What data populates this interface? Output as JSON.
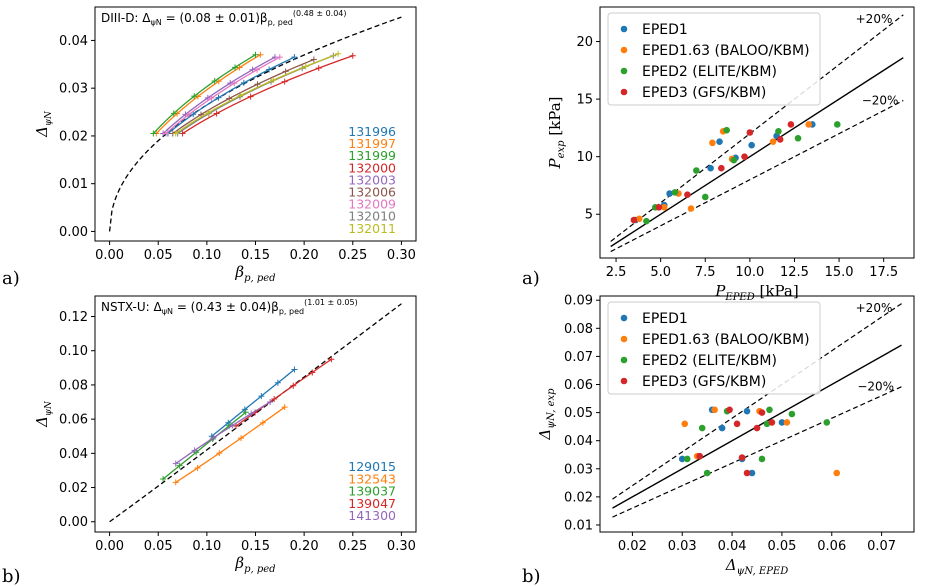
{
  "panel_labels": {
    "top_left": "a)",
    "top_right": "a)",
    "bottom_left": "b)",
    "bottom_right": "b)"
  },
  "chart_data": [
    {
      "type": "line",
      "id": "diiid",
      "annotation": "DIII-D: Δψₙ = (0.08 ± 0.01) β_p,ped^(0.48 ± 0.04)",
      "annotation_parts": {
        "prefix": "DIII-D: Δ",
        "sub": "ψN",
        "eq": " = (0.08 ± 0.01)β",
        "bsub": "p, ped",
        "sup": "(0.48 ± 0.04)"
      },
      "xlabel": "β_p,ped",
      "ylabel": "Δψₙ",
      "xlim": [
        -0.015,
        0.315
      ],
      "ylim": [
        -0.002,
        0.047
      ],
      "xticks": [
        0.0,
        0.05,
        0.1,
        0.15,
        0.2,
        0.25,
        0.3
      ],
      "xtick_labels": [
        "0.00",
        "0.05",
        "0.10",
        "0.15",
        "0.20",
        "0.25",
        "0.30"
      ],
      "yticks": [
        0.0,
        0.01,
        0.02,
        0.03,
        0.04
      ],
      "ytick_labels": [
        "0.00",
        "0.01",
        "0.02",
        "0.03",
        "0.04"
      ],
      "fit": {
        "coef": 0.08,
        "exp": 0.48,
        "xmax": 0.3
      },
      "series": [
        {
          "name": "131996",
          "color": "#1f77b4",
          "x": [
            0.06,
            0.19
          ],
          "y": [
            0.0205,
            0.0365
          ]
        },
        {
          "name": "131997",
          "color": "#ff7f0e",
          "x": [
            0.048,
            0.155
          ],
          "y": [
            0.0205,
            0.037
          ]
        },
        {
          "name": "131999",
          "color": "#2ca02c",
          "x": [
            0.045,
            0.15
          ],
          "y": [
            0.0205,
            0.037
          ]
        },
        {
          "name": "132000",
          "color": "#d62728",
          "x": [
            0.075,
            0.25
          ],
          "y": [
            0.0205,
            0.0368
          ]
        },
        {
          "name": "132003",
          "color": "#9467bd",
          "x": [
            0.055,
            0.17
          ],
          "y": [
            0.0205,
            0.0365
          ]
        },
        {
          "name": "132006",
          "color": "#8c564b",
          "x": [
            0.065,
            0.21
          ],
          "y": [
            0.0205,
            0.036
          ]
        },
        {
          "name": "132009",
          "color": "#e377c2",
          "x": [
            0.058,
            0.175
          ],
          "y": [
            0.0205,
            0.0365
          ]
        },
        {
          "name": "132010",
          "color": "#7f7f7f",
          "x": [
            0.07,
            0.23
          ],
          "y": [
            0.0205,
            0.0368
          ]
        },
        {
          "name": "132011",
          "color": "#bcbd22",
          "x": [
            0.068,
            0.235
          ],
          "y": [
            0.0205,
            0.0372
          ]
        }
      ]
    },
    {
      "type": "line",
      "id": "nstxu",
      "annotation_parts": {
        "prefix": "NSTX-U: Δ",
        "sub": "ψN",
        "eq": " = (0.43 ± 0.04)β",
        "bsub": "p, ped",
        "sup": "(1.01 ± 0.05)"
      },
      "xlabel": "β_p,ped",
      "ylabel": "Δψₙ",
      "xlim": [
        -0.015,
        0.315
      ],
      "ylim": [
        -0.006,
        0.132
      ],
      "xticks": [
        0.0,
        0.05,
        0.1,
        0.15,
        0.2,
        0.25,
        0.3
      ],
      "xtick_labels": [
        "0.00",
        "0.05",
        "0.10",
        "0.15",
        "0.20",
        "0.25",
        "0.30"
      ],
      "yticks": [
        0.0,
        0.02,
        0.04,
        0.06,
        0.08,
        0.1,
        0.12
      ],
      "ytick_labels": [
        "0.00",
        "0.02",
        "0.04",
        "0.06",
        "0.08",
        "0.10",
        "0.12"
      ],
      "fit": {
        "coef": 0.43,
        "exp": 1.01,
        "xmax": 0.3
      },
      "series": [
        {
          "name": "129015",
          "color": "#1f77b4",
          "x": [
            0.105,
            0.19
          ],
          "y": [
            0.05,
            0.089
          ]
        },
        {
          "name": "132543",
          "color": "#ff7f0e",
          "x": [
            0.068,
            0.18
          ],
          "y": [
            0.023,
            0.067
          ]
        },
        {
          "name": "139037",
          "color": "#2ca02c",
          "x": [
            0.055,
            0.14
          ],
          "y": [
            0.025,
            0.064
          ]
        },
        {
          "name": "139047",
          "color": "#d62728",
          "x": [
            0.13,
            0.228
          ],
          "y": [
            0.056,
            0.095
          ]
        },
        {
          "name": "141300",
          "color": "#9467bd",
          "x": [
            0.068,
            0.165
          ],
          "y": [
            0.034,
            0.07
          ]
        }
      ]
    },
    {
      "type": "scatter",
      "id": "pressure",
      "xlabel": "P_EPED [kPa]",
      "ylabel": "P_exp [kPa]",
      "xlim": [
        1.6,
        19.2
      ],
      "ylim": [
        1.2,
        23.0
      ],
      "xticks": [
        2.5,
        5.0,
        7.5,
        10.0,
        12.5,
        15.0,
        17.5
      ],
      "xtick_labels": [
        "2.5",
        "5.0",
        "7.5",
        "10.0",
        "12.5",
        "15.0",
        "17.5"
      ],
      "yticks": [
        5,
        10,
        15,
        20
      ],
      "ytick_labels": [
        "5",
        "10",
        "15",
        "20"
      ],
      "line_range": [
        2.2,
        18.6
      ],
      "band_labels": {
        "upper": "+20%",
        "lower": "−20%"
      },
      "legend_placement": "upper-left",
      "series": [
        {
          "name": "EPED1",
          "color": "#1f77b4",
          "x": [
            3.6,
            5.5,
            5.2,
            7.8,
            8.3,
            9.2,
            10.1,
            11.5,
            13.5
          ],
          "y": [
            4.5,
            6.8,
            5.8,
            9.0,
            11.3,
            9.9,
            11.0,
            11.8,
            12.8
          ]
        },
        {
          "name": "EPED1.63 (BALOO/KBM)",
          "color": "#ff7f0e",
          "x": [
            3.8,
            5.2,
            6.0,
            6.7,
            7.9,
            8.5,
            9.0,
            11.3,
            13.3
          ],
          "y": [
            4.6,
            5.6,
            6.8,
            5.5,
            11.2,
            12.2,
            9.8,
            11.3,
            12.8
          ]
        },
        {
          "name": "EPED2 (ELITE/KBM)",
          "color": "#2ca02c",
          "x": [
            4.2,
            4.7,
            5.8,
            7.0,
            7.5,
            8.7,
            9.1,
            11.6,
            12.7,
            14.9
          ],
          "y": [
            4.4,
            5.6,
            6.9,
            8.8,
            6.5,
            12.3,
            9.7,
            12.2,
            11.6,
            12.8
          ]
        },
        {
          "name": "EPED3 (GFS/KBM)",
          "color": "#d62728",
          "x": [
            3.5,
            4.9,
            6.5,
            8.4,
            9.7,
            10.0,
            11.7,
            12.3
          ],
          "y": [
            4.5,
            5.6,
            6.7,
            9.0,
            10.0,
            12.1,
            11.5,
            12.8
          ]
        }
      ]
    },
    {
      "type": "scatter",
      "id": "width",
      "xlabel": "Δψₙ,EPED",
      "ylabel": "Δψₙ,exp",
      "xlim": [
        0.0135,
        0.0765
      ],
      "ylim": [
        0.0075,
        0.0915
      ],
      "xticks": [
        0.02,
        0.03,
        0.04,
        0.05,
        0.06,
        0.07
      ],
      "xtick_labels": [
        "0.02",
        "0.03",
        "0.04",
        "0.05",
        "0.06",
        "0.07"
      ],
      "yticks": [
        0.01,
        0.02,
        0.03,
        0.04,
        0.05,
        0.06,
        0.07,
        0.08,
        0.09
      ],
      "ytick_labels": [
        "0.01",
        "0.02",
        "0.03",
        "0.04",
        "0.05",
        "0.06",
        "0.07",
        "0.08",
        "0.09"
      ],
      "line_range": [
        0.016,
        0.074
      ],
      "band_labels": {
        "upper": "+20%",
        "lower": "−20%"
      },
      "legend_placement": "upper-left",
      "series": [
        {
          "name": "EPED1",
          "color": "#1f77b4",
          "x": [
            0.03,
            0.036,
            0.038,
            0.042,
            0.044,
            0.05,
            0.043
          ],
          "y": [
            0.0335,
            0.051,
            0.0445,
            0.0335,
            0.0285,
            0.0465,
            0.0505
          ]
        },
        {
          "name": "EPED1.63 (BALOO/KBM)",
          "color": "#ff7f0e",
          "x": [
            0.0305,
            0.033,
            0.0365,
            0.0455,
            0.051,
            0.061
          ],
          "y": [
            0.046,
            0.0345,
            0.051,
            0.0505,
            0.0465,
            0.0285
          ]
        },
        {
          "name": "EPED2 (ELITE/KBM)",
          "color": "#2ca02c",
          "x": [
            0.031,
            0.034,
            0.035,
            0.039,
            0.046,
            0.047,
            0.0475,
            0.052,
            0.059
          ],
          "y": [
            0.0335,
            0.0445,
            0.0285,
            0.0505,
            0.0335,
            0.046,
            0.051,
            0.0495,
            0.0465
          ]
        },
        {
          "name": "EPED3 (GFS/KBM)",
          "color": "#d62728",
          "x": [
            0.0335,
            0.0395,
            0.041,
            0.042,
            0.043,
            0.045,
            0.046,
            0.048
          ],
          "y": [
            0.0345,
            0.051,
            0.046,
            0.034,
            0.0285,
            0.0445,
            0.05,
            0.0465
          ]
        }
      ]
    }
  ]
}
